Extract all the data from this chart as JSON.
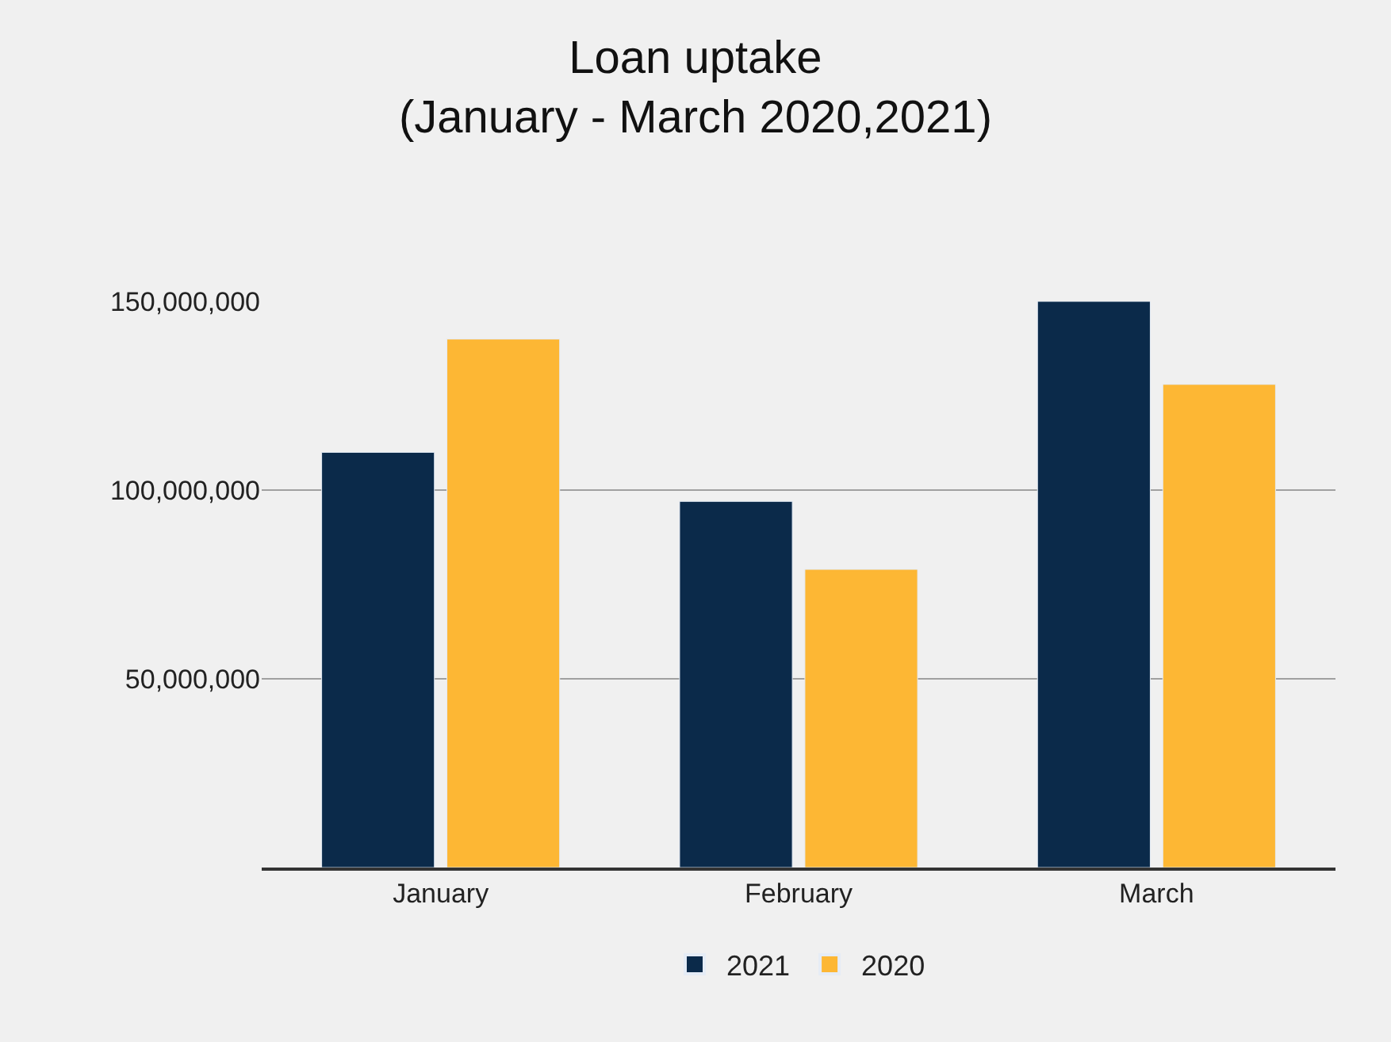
{
  "chart_data": {
    "type": "bar",
    "title": "Loan uptake\n(January - March 2020,2021)",
    "categories": [
      "January",
      "February",
      "March"
    ],
    "series": [
      {
        "name": "2021",
        "color": "#0b2a4a",
        "values": [
          110000000,
          97000000,
          150000000
        ]
      },
      {
        "name": "2020",
        "color": "#fdb734",
        "values": [
          140000000,
          79000000,
          128000000
        ]
      }
    ],
    "ylim": [
      0,
      150000000
    ],
    "yticks": [
      {
        "value": 50000000,
        "label": "50,000,000"
      },
      {
        "value": 100000000,
        "label": "100,000,000"
      },
      {
        "value": 150000000,
        "label": "150,000,000"
      }
    ],
    "grid": "y",
    "legend": "bottom"
  }
}
